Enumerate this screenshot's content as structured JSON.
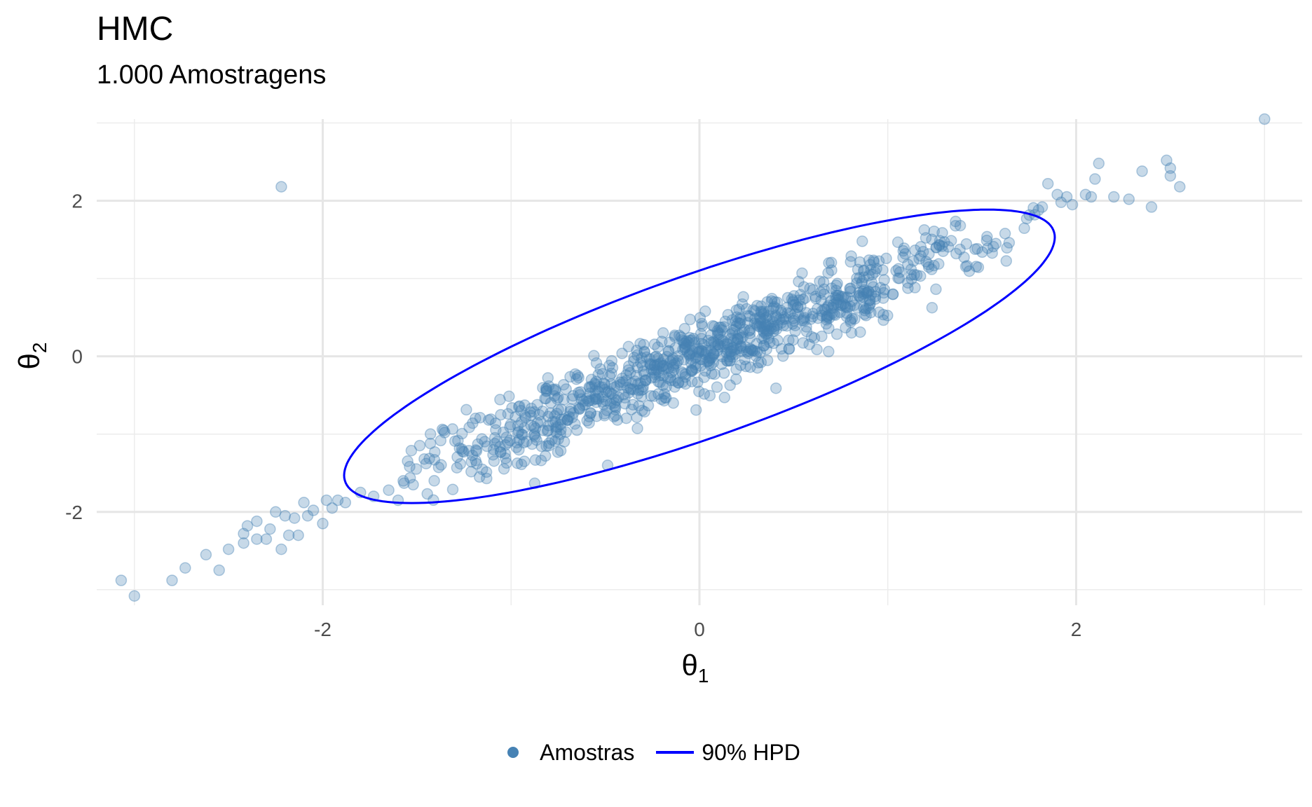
{
  "chart_data": {
    "type": "scatter",
    "title": "HMC",
    "subtitle": "1.000 Amostragens",
    "xlabel": "θ",
    "xlabel_sub": "1",
    "ylabel": "θ",
    "ylabel_sub": "2",
    "xlim": [
      -3.2,
      3.2
    ],
    "ylim": [
      -3.2,
      3.05
    ],
    "xticks": [
      -2,
      0,
      2
    ],
    "xtick_labels": [
      "-2",
      "0",
      "2"
    ],
    "yticks": [
      -2,
      0,
      2
    ],
    "ytick_labels": [
      "-2",
      "0",
      "2"
    ],
    "grid": true,
    "series": [
      {
        "name": "Amostras",
        "kind": "points",
        "color": "#4682b4",
        "opacity": 0.3,
        "n": 1000,
        "correlation": 0.97,
        "x": [
          -3.07,
          -3.0,
          -2.8,
          -2.73,
          -2.62,
          -2.55,
          -2.5,
          -2.42,
          -2.42,
          -2.4,
          -2.35,
          -2.35,
          -2.3,
          -2.28,
          -2.25,
          -2.22,
          -2.2,
          -2.18,
          -2.15,
          -2.13,
          -2.1,
          -2.08,
          -2.05,
          -2.0,
          -1.98,
          -1.95,
          -1.92,
          -1.88,
          -1.8,
          -1.73,
          -1.65,
          -1.6,
          -1.52,
          3.0,
          2.55,
          2.5,
          2.5,
          2.48,
          2.4,
          2.35,
          2.28,
          2.2,
          2.12,
          2.1,
          2.08,
          2.05,
          1.98,
          1.95,
          1.92,
          1.9,
          1.85,
          1.82,
          1.8,
          1.78
        ],
        "y": [
          -2.88,
          -3.08,
          -2.88,
          -2.72,
          -2.55,
          -2.75,
          -2.48,
          -2.4,
          -2.28,
          -2.18,
          -2.35,
          -2.12,
          -2.35,
          -2.22,
          -2.0,
          -2.48,
          -2.05,
          -2.3,
          -2.08,
          -2.3,
          -1.88,
          -2.05,
          -1.98,
          -2.15,
          -1.85,
          -1.95,
          -1.85,
          -1.88,
          -1.75,
          -1.8,
          -1.72,
          -1.85,
          -1.65,
          3.05,
          2.18,
          2.32,
          2.42,
          2.52,
          1.92,
          2.38,
          2.02,
          2.05,
          2.48,
          2.28,
          2.05,
          2.08,
          1.95,
          2.05,
          1.98,
          2.08,
          2.22,
          1.92,
          1.88,
          1.82
        ],
        "outliers": [
          {
            "x": -2.22,
            "y": 2.18
          }
        ]
      },
      {
        "name": "90% HPD",
        "kind": "ellipse",
        "color": "#0000ff",
        "center": [
          0,
          0
        ],
        "extreme_points": {
          "left": [
            -1.85,
            -1.55
          ],
          "right": [
            1.87,
            1.55
          ],
          "top": [
            1.5,
            1.87
          ],
          "bottom": [
            -1.45,
            -1.87
          ]
        }
      }
    ]
  },
  "legend": {
    "position": "bottom",
    "items": [
      {
        "label": "Amostras",
        "color": "#4682b4"
      },
      {
        "label": "90% HPD",
        "color": "#0000ff"
      }
    ]
  }
}
